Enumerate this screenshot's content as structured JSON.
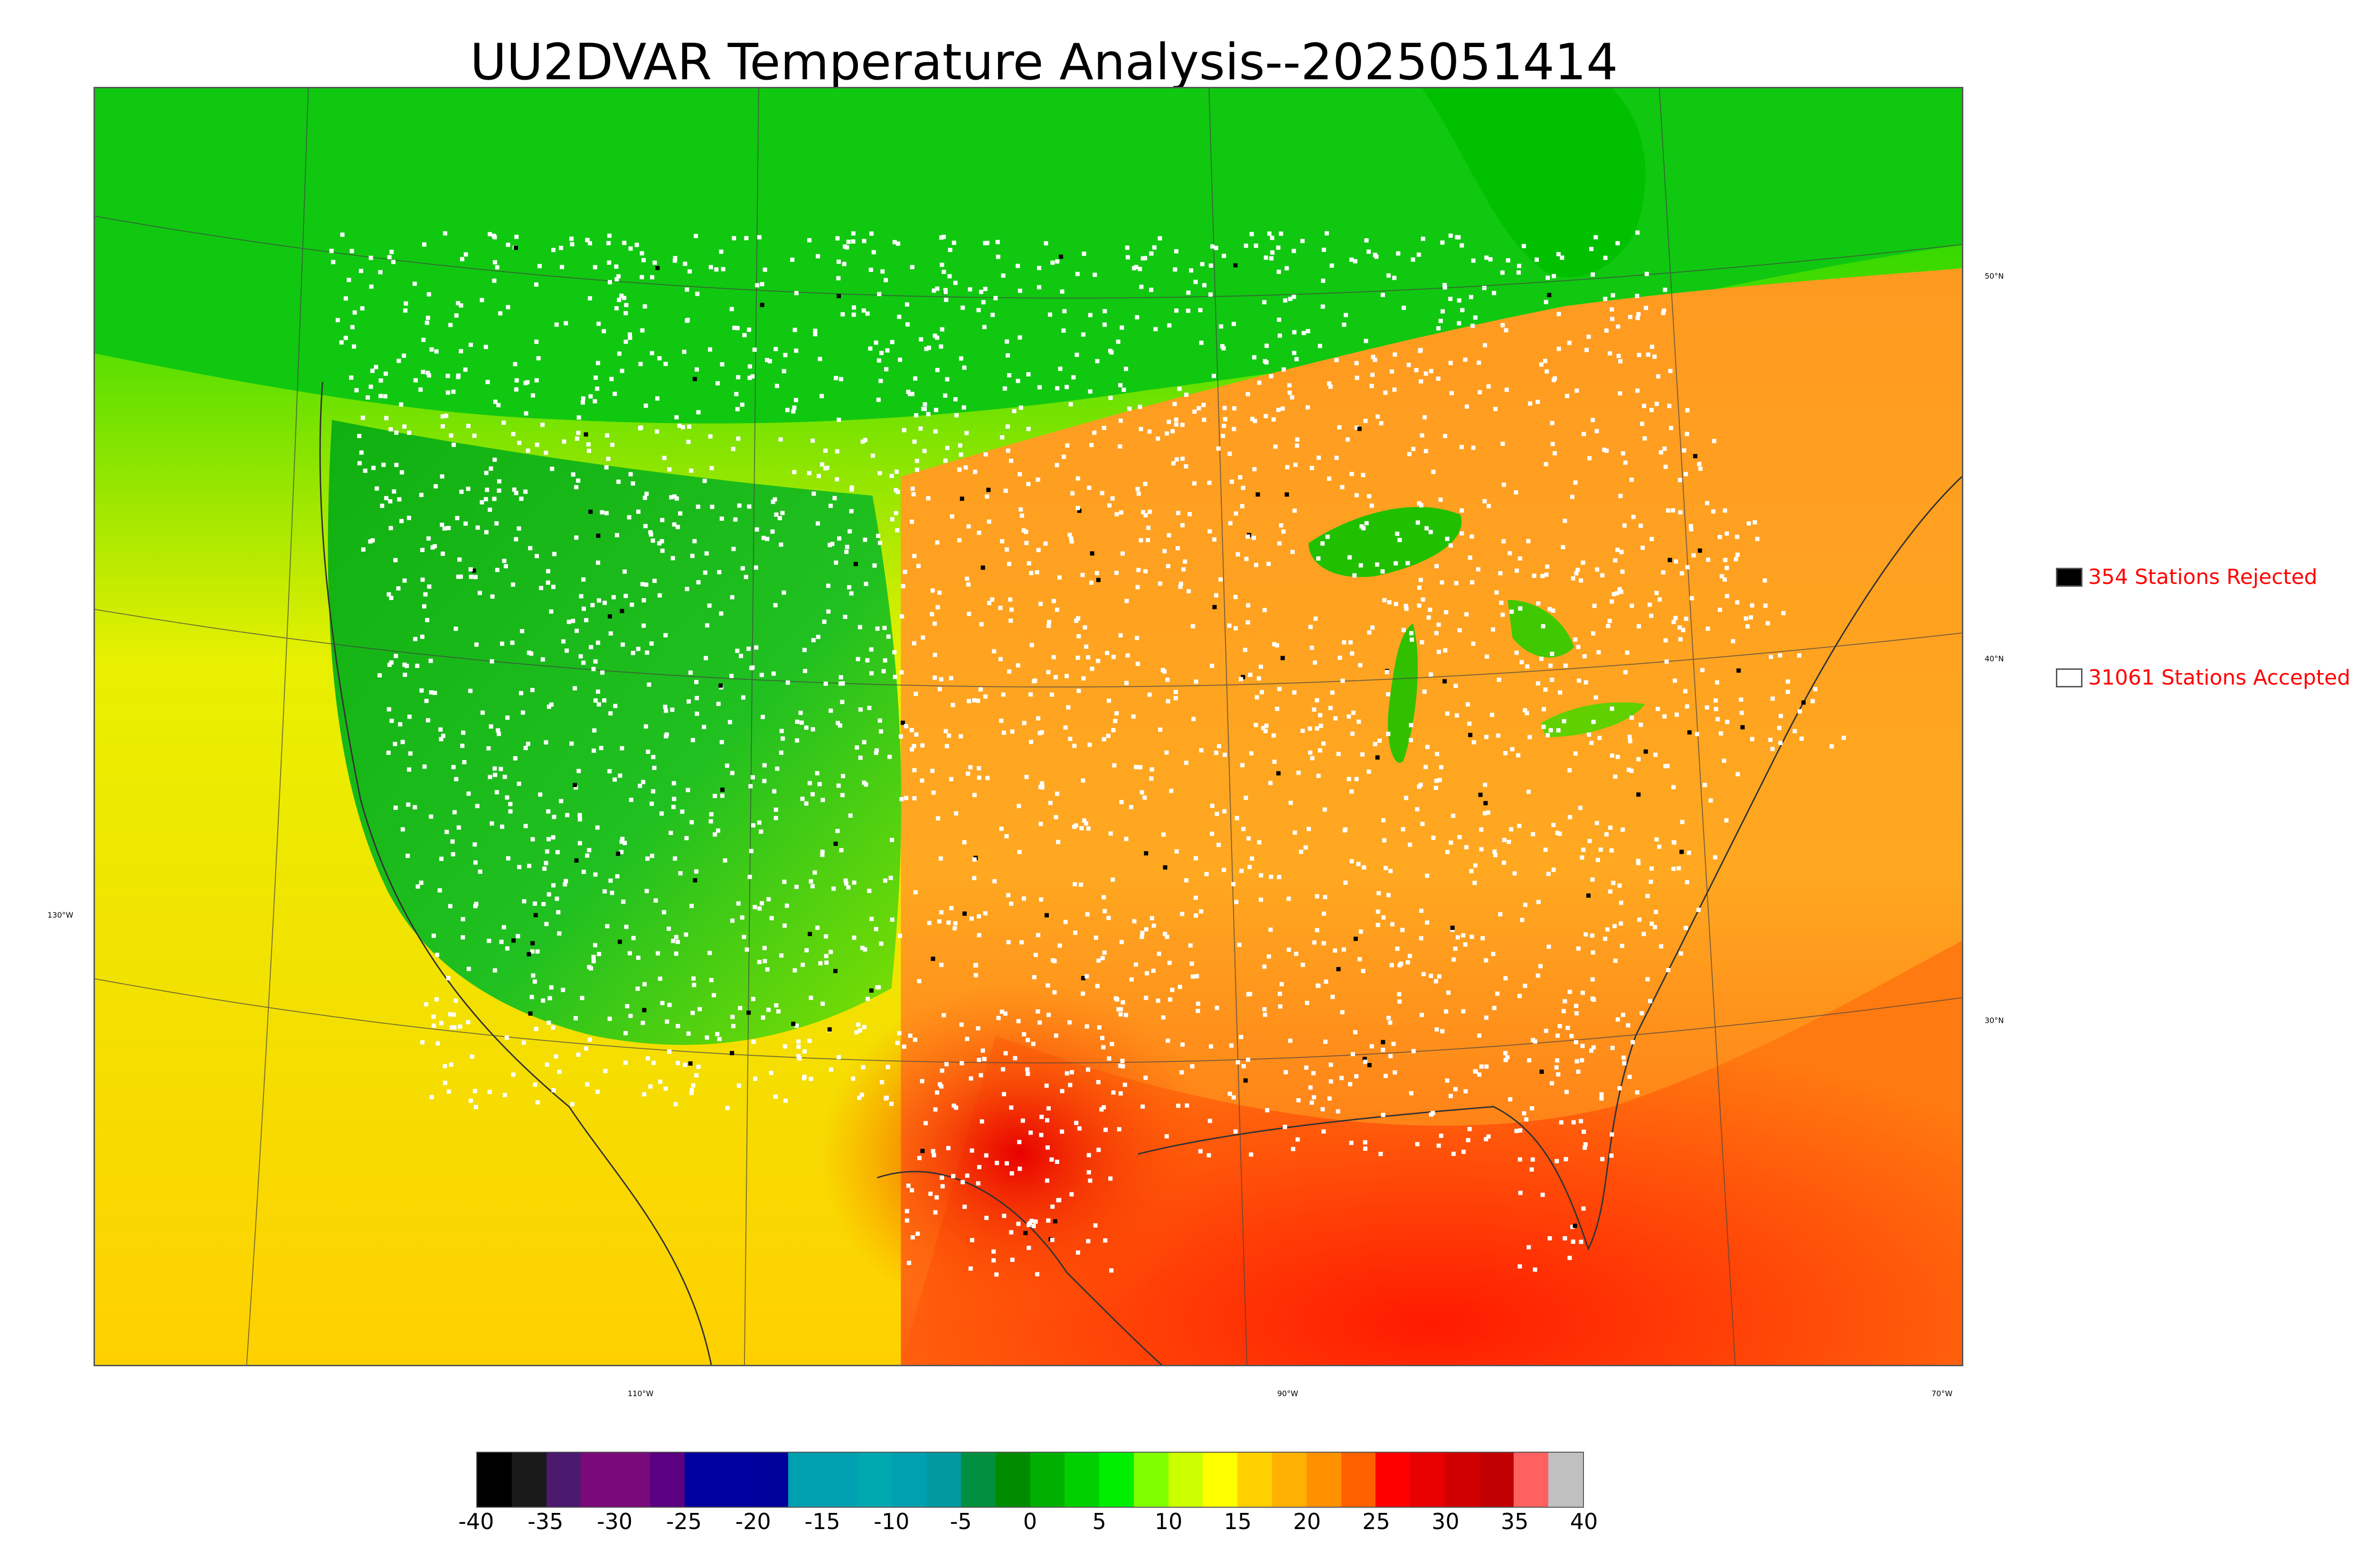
{
  "title": "UU2DVAR Temperature Analysis--2025051414",
  "legend": {
    "rejected": {
      "label": "354 Stations Rejected",
      "swatch_color": "#000000"
    },
    "accepted": {
      "label": "31061 Stations Accepted",
      "swatch_color": "#ffffff"
    },
    "text_color": "#ff0000"
  },
  "graticule_labels": {
    "latitudes": [
      "50°N",
      "40°N",
      "30°N"
    ],
    "longitudes": [
      "130°W",
      "110°W",
      "90°W",
      "70°W"
    ]
  },
  "colorbar": {
    "ticks": [
      "-40",
      "-35",
      "-30",
      "-25",
      "-20",
      "-15",
      "-10",
      "-5",
      "0",
      "5",
      "10",
      "15",
      "20",
      "25",
      "30",
      "35",
      "40"
    ],
    "range": [
      -40,
      40
    ],
    "colors": [
      "#000000",
      "#1a1a1a",
      "#4b1a6e",
      "#7a0a7a",
      "#7a0a7a",
      "#5a0080",
      "#0000a0",
      "#0000a0",
      "#00009a",
      "#00a0b0",
      "#00a0b0",
      "#00a8b0",
      "#00a0b0",
      "#009aa0",
      "#009040",
      "#008c00",
      "#00b000",
      "#00d000",
      "#00ee00",
      "#80ff00",
      "#ccff00",
      "#ffff00",
      "#ffd000",
      "#ffb000",
      "#ff9000",
      "#ff6000",
      "#ff0000",
      "#e60000",
      "#d00000",
      "#c00000",
      "#ff6060",
      "#c0c0c0"
    ]
  },
  "map": {
    "ocean_west_color": "#d8f000",
    "ocean_gulf_color": "#ff3000",
    "west_land_color": "#20c020",
    "east_land_color": "#ff9a20",
    "canada_color": "#00d000",
    "station_accepted_color": "#ffffff",
    "station_rejected_color": "#000000"
  }
}
